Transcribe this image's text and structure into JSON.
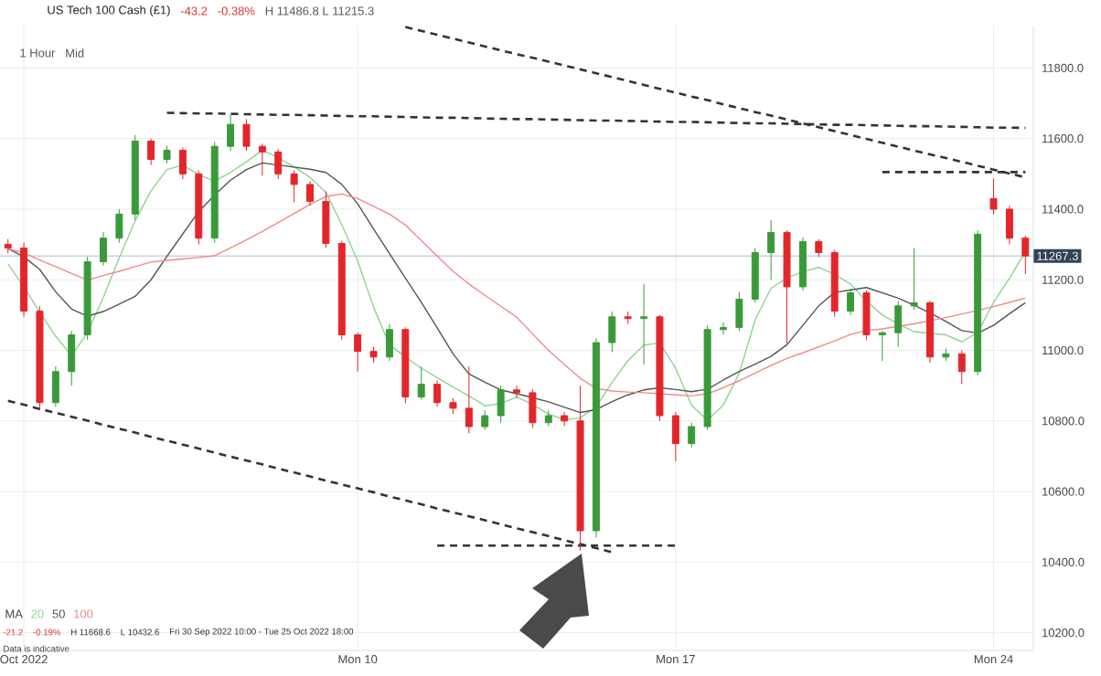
{
  "chart_data": {
    "type": "candlestick",
    "title": "US Tech 100 Cash (£1)",
    "annotations": [
      "-43.2",
      "-0.38%",
      "H 11486.8 L 11215.3",
      "1 Hour",
      "Mid",
      "-21.2",
      "-0.19%",
      "H 11668.6",
      "L 10432.6",
      "Fri 30 Sep 2022 10:00 - Tue 25 Oct 2022 18:00",
      "Data is indicative"
    ],
    "categories": [
      null,
      "Oct 2022",
      null,
      null,
      null,
      null,
      null,
      null,
      null,
      null,
      null,
      null,
      null,
      null,
      null,
      null,
      null,
      null,
      null,
      null,
      null,
      null,
      "Mon 10",
      null,
      null,
      null,
      null,
      null,
      null,
      null,
      null,
      null,
      null,
      null,
      null,
      null,
      null,
      null,
      null,
      null,
      null,
      null,
      "Mon 17",
      null,
      null,
      null,
      null,
      null,
      null,
      null,
      null,
      null,
      null,
      null,
      null,
      null,
      null,
      null,
      null,
      null,
      null,
      null,
      "Mon 24",
      null,
      null
    ],
    "colors": [
      "#e3262b",
      "#e3262b",
      "#e3262b",
      "#3a9a3a",
      "#3a9a3a",
      "#3a9a3a",
      "#3a9a3a",
      "#3a9a3a",
      "#3a9a3a",
      "#e3262b",
      "#3a9a3a",
      "#e3262b",
      "#e3262b",
      "#3a9a3a",
      "#3a9a3a",
      "#e3262b",
      "#e3262b",
      "#e3262b",
      "#e3262b",
      "#e3262b",
      "#e3262b",
      "#e3262b",
      "#e3262b",
      "#e3262b",
      "#3a9a3a",
      "#e3262b",
      "#3a9a3a",
      "#e3262b",
      "#e3262b",
      "#e3262b",
      "#3a9a3a",
      "#3a9a3a",
      "#e3262b",
      "#e3262b",
      "#3a9a3a",
      "#e3262b",
      "#e3262b",
      "#3a9a3a",
      "#3a9a3a",
      "#e3262b",
      "#3a9a3a",
      "#e3262b",
      "#e3262b",
      "#3a9a3a",
      "#3a9a3a",
      "#3a9a3a",
      "#3a9a3a",
      "#3a9a3a",
      "#3a9a3a",
      "#e3262b",
      "#3a9a3a",
      "#e3262b",
      "#e3262b",
      "#3a9a3a",
      "#e3262b",
      "#3a9a3a",
      "#3a9a3a",
      "#3a9a3a",
      "#e3262b",
      "#3a9a3a",
      "#e3262b",
      "#3a9a3a",
      "#e3262b",
      "#e3262b",
      "#e3262b"
    ],
    "ohlc": [
      [
        11300,
        11315,
        11275,
        11290
      ],
      [
        11290,
        11305,
        11095,
        11111
      ],
      [
        11111,
        11125,
        10830,
        10852
      ],
      [
        10852,
        10955,
        10840,
        10940
      ],
      [
        10940,
        11055,
        10900,
        11044
      ],
      [
        11044,
        11265,
        11030,
        11251
      ],
      [
        11251,
        11335,
        11240,
        11318
      ],
      [
        11318,
        11400,
        11305,
        11386
      ],
      [
        11386,
        11610,
        11370,
        11593
      ],
      [
        11593,
        11600,
        11525,
        11541
      ],
      [
        11541,
        11580,
        11530,
        11567
      ],
      [
        11567,
        11575,
        11485,
        11500
      ],
      [
        11500,
        11510,
        11300,
        11318
      ],
      [
        11318,
        11590,
        11305,
        11578
      ],
      [
        11578,
        11668.6,
        11565,
        11640
      ],
      [
        11640,
        11655,
        11565,
        11578
      ],
      [
        11578,
        11585,
        11495,
        11562
      ],
      [
        11562,
        11570,
        11485,
        11500
      ],
      [
        11500,
        11510,
        11420,
        11470
      ],
      [
        11470,
        11480,
        11410,
        11422
      ],
      [
        11422,
        11450,
        11290,
        11303
      ],
      [
        11303,
        11310,
        11030,
        11044
      ],
      [
        11044,
        11050,
        10940,
        10997
      ],
      [
        10997,
        11010,
        10965,
        10981
      ],
      [
        10981,
        11075,
        10970,
        11059
      ],
      [
        11059,
        11065,
        10850,
        10868
      ],
      [
        10868,
        10955,
        10860,
        10904
      ],
      [
        10904,
        10915,
        10840,
        10852
      ],
      [
        10852,
        10865,
        10820,
        10836
      ],
      [
        10836,
        10955,
        10765,
        10784
      ],
      [
        10784,
        10830,
        10775,
        10815
      ],
      [
        10815,
        10900,
        10795,
        10888
      ],
      [
        10888,
        10900,
        10865,
        10880
      ],
      [
        10880,
        10890,
        10780,
        10795
      ],
      [
        10795,
        10830,
        10785,
        10815
      ],
      [
        10815,
        10825,
        10785,
        10800
      ],
      [
        10800,
        10900,
        10432.6,
        10489
      ],
      [
        10489,
        11035,
        10470,
        11022
      ],
      [
        11022,
        11110,
        10995,
        11095
      ],
      [
        11095,
        11110,
        11075,
        11090
      ],
      [
        11090,
        11188,
        10960,
        11095
      ],
      [
        11095,
        11100,
        10800,
        10815
      ],
      [
        10815,
        10825,
        10686,
        10736
      ],
      [
        10736,
        10795,
        10725,
        10784
      ],
      [
        10784,
        11070,
        10775,
        11059
      ],
      [
        11059,
        11080,
        11045,
        11065
      ],
      [
        11065,
        11165,
        11055,
        11145
      ],
      [
        11145,
        11290,
        11135,
        11277
      ],
      [
        11277,
        11370,
        11200,
        11334
      ],
      [
        11334,
        11340,
        11020,
        11180
      ],
      [
        11180,
        11320,
        11170,
        11308
      ],
      [
        11308,
        11315,
        11265,
        11277
      ],
      [
        11277,
        11285,
        11095,
        11111
      ],
      [
        11111,
        11175,
        11100,
        11163
      ],
      [
        11163,
        11170,
        11030,
        11044
      ],
      [
        11044,
        11055,
        10970,
        11050
      ],
      [
        11050,
        11140,
        11010,
        11126
      ],
      [
        11126,
        11290,
        11115,
        11135
      ],
      [
        11135,
        11140,
        10965,
        10981
      ],
      [
        10981,
        11005,
        10970,
        10990
      ],
      [
        10990,
        11000,
        10905,
        10940
      ],
      [
        10940,
        11340,
        10930,
        11329
      ],
      [
        11430,
        11486.8,
        11385,
        11400
      ],
      [
        11400,
        11410,
        11300,
        11318
      ],
      [
        11318,
        11325,
        11215.3,
        11267.3
      ]
    ],
    "series": [
      {
        "name": "20",
        "type": "line",
        "color": "#8fd48f",
        "values": [
          11245,
          11180,
          11108,
          11040,
          10985,
          11050,
          11150,
          11262,
          11367,
          11452,
          11512,
          11525,
          11497,
          11480,
          11504,
          11534,
          11567,
          11546,
          11520,
          11490,
          11448,
          11356,
          11253,
          11122,
          11016,
          10981,
          10949,
          10923,
          10896,
          10871,
          10843,
          10849,
          10868,
          10847,
          10820,
          10803,
          10809,
          10840,
          10909,
          10971,
          11015,
          11021,
          10949,
          10845,
          10802,
          10845,
          10935,
          11086,
          11176,
          11205,
          11223,
          11235,
          11215,
          11188,
          11139,
          11100,
          11075,
          11053,
          11048,
          11044,
          11024,
          11051,
          11136,
          11204,
          11280
        ]
      },
      {
        "name": "50",
        "type": "line",
        "color": "#555555",
        "values": [
          11288,
          11265,
          11229,
          11166,
          11117,
          11097,
          11110,
          11131,
          11153,
          11200,
          11266,
          11330,
          11393,
          11440,
          11482,
          11512,
          11531,
          11525,
          11519,
          11513,
          11504,
          11470,
          11415,
          11344,
          11274,
          11205,
          11136,
          11064,
          10990,
          10933,
          10910,
          10888,
          10877,
          10866,
          10854,
          10839,
          10824,
          10832,
          10855,
          10874,
          10888,
          10894,
          10889,
          10883,
          10890,
          10916,
          10940,
          10961,
          10983,
          11016,
          11071,
          11126,
          11164,
          11171,
          11178,
          11163,
          11148,
          11128,
          11106,
          11082,
          11056,
          11049,
          11071,
          11104,
          11135
        ]
      },
      {
        "name": "100",
        "type": "line",
        "color": "#f08a8a",
        "values": [
          11288,
          11276,
          11256,
          11237,
          11218,
          11199,
          11212,
          11224,
          11237,
          11250,
          11255,
          11259,
          11263,
          11268,
          11290,
          11313,
          11337,
          11362,
          11388,
          11413,
          11436,
          11443,
          11430,
          11408,
          11386,
          11355,
          11311,
          11267,
          11224,
          11188,
          11156,
          11125,
          11094,
          11047,
          11000,
          10960,
          10921,
          10892,
          10885,
          10882,
          10880,
          10877,
          10874,
          10871,
          10877,
          10894,
          10914,
          10936,
          10957,
          10977,
          10993,
          11010,
          11027,
          11045,
          11056,
          11061,
          11068,
          11075,
          11084,
          11093,
          11103,
          11113,
          11124,
          11136,
          11148
        ]
      },
      {
        "type": "line",
        "line_style": "dashed",
        "color": "#333333",
        "values": [
          null,
          null,
          null,
          null,
          null,
          null,
          null,
          null,
          null,
          null,
          11673,
          11672,
          11671,
          11671,
          11670,
          11669,
          11668,
          11667,
          11667,
          11666,
          11665,
          11664,
          11663,
          11663,
          11662,
          11661,
          11660,
          11659,
          11659,
          11658,
          11657,
          11656,
          11655,
          11655,
          11654,
          11653,
          11652,
          11651,
          11651,
          11650,
          11649,
          11648,
          11647,
          11647,
          11646,
          11645,
          11644,
          11643,
          11643,
          11642,
          11641,
          11640,
          11639,
          11639,
          11638,
          11637,
          11636,
          11635,
          11635,
          11634,
          11633,
          11632,
          11631,
          11631,
          11630
        ]
      },
      {
        "type": "line",
        "line_style": "dashed",
        "color": "#333333",
        "values": [
          null,
          null,
          null,
          null,
          null,
          null,
          null,
          null,
          null,
          null,
          null,
          null,
          null,
          null,
          null,
          null,
          null,
          null,
          null,
          null,
          null,
          null,
          null,
          null,
          null,
          11916,
          11905,
          11894,
          11883,
          11872,
          11861,
          11850,
          11839,
          11829,
          11818,
          11807,
          11796,
          11785,
          11774,
          11763,
          11752,
          11741,
          11730,
          11719,
          11709,
          11697,
          11686,
          11675,
          11665,
          11654,
          11643,
          11632,
          11621,
          11610,
          11599,
          11588,
          11577,
          11566,
          11555,
          11545,
          11534,
          11523,
          11512,
          11501,
          11490
        ]
      },
      {
        "type": "line",
        "line_style": "dashed",
        "color": "#333333",
        "values": [
          null,
          null,
          null,
          null,
          null,
          null,
          null,
          null,
          null,
          null,
          null,
          null,
          null,
          null,
          null,
          null,
          null,
          null,
          null,
          null,
          null,
          null,
          null,
          null,
          null,
          null,
          null,
          null,
          null,
          null,
          null,
          null,
          null,
          null,
          null,
          null,
          null,
          null,
          null,
          null,
          null,
          null,
          null,
          null,
          null,
          null,
          null,
          null,
          null,
          null,
          null,
          null,
          null,
          null,
          null,
          11505,
          11505,
          11505,
          11505,
          11505,
          11505,
          11505,
          11505,
          11505,
          11505
        ]
      },
      {
        "type": "line",
        "line_style": "dashed",
        "color": "#333333",
        "values": [
          10857,
          10846,
          10834,
          10823,
          10812,
          10801,
          10789,
          10778,
          10767,
          10755,
          10744,
          10733,
          10722,
          10710,
          10699,
          10688,
          10677,
          10665,
          10654,
          10643,
          10631,
          10620,
          10609,
          10598,
          10586,
          10575,
          10564,
          10552,
          10541,
          10530,
          10519,
          10507,
          10496,
          10485,
          10474,
          10462,
          10451,
          10440,
          10428,
          null,
          null,
          null,
          null,
          null,
          null,
          null,
          null,
          null,
          null,
          null,
          null,
          null,
          null,
          null,
          null,
          null,
          null,
          null,
          null,
          null,
          null,
          null,
          null,
          null,
          null
        ]
      },
      {
        "type": "line",
        "line_style": "dashed",
        "color": "#333333",
        "values": [
          null,
          null,
          null,
          null,
          null,
          null,
          null,
          null,
          null,
          null,
          null,
          null,
          null,
          null,
          null,
          null,
          null,
          null,
          null,
          null,
          null,
          null,
          null,
          null,
          null,
          null,
          null,
          10447,
          10447,
          10447,
          10447,
          10447,
          10447,
          10447,
          10447,
          10447,
          10447,
          10447,
          10447,
          10447,
          10447,
          10447,
          10447,
          null,
          null,
          null,
          null,
          null,
          null,
          null,
          null,
          null,
          null,
          null,
          null,
          null,
          null,
          null,
          null,
          null,
          null,
          null,
          null,
          null,
          null
        ]
      }
    ],
    "legend": "bottom left",
    "legend_title": "MA",
    "ref_lines": [
      {
        "axis": "y",
        "value": 11267.3,
        "label": "11267.3",
        "color": "#c8d2de"
      }
    ],
    "ylim": [
      10150,
      11920
    ],
    "yticks": [
      {
        "value": 10200,
        "label": "10200.0"
      },
      {
        "value": 10400,
        "label": "10400.0"
      },
      {
        "value": 10600,
        "label": "10600.0"
      },
      {
        "value": 10800,
        "label": "10800.0"
      },
      {
        "value": 11000,
        "label": "11000.0"
      },
      {
        "value": 11200,
        "label": "11200.0"
      },
      {
        "value": 11400,
        "label": "11400.0"
      },
      {
        "value": 11600,
        "label": "11600.0"
      },
      {
        "value": 11800,
        "label": "11800.0"
      }
    ],
    "grid": true
  }
}
